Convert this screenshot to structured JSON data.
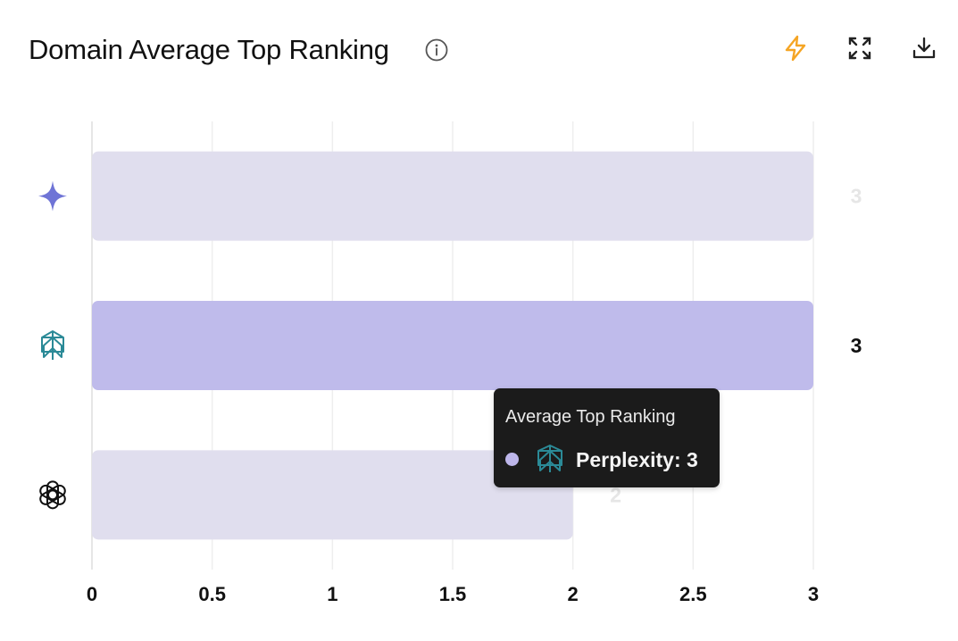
{
  "header": {
    "title": "Domain Average Top Ranking",
    "icons": [
      "info-icon",
      "lightning-icon",
      "expand-icon",
      "download-icon"
    ],
    "accent_color": "#F5A524"
  },
  "chart_data": {
    "type": "bar",
    "orientation": "horizontal",
    "categories": [
      "Gemini",
      "Perplexity",
      "ChatGPT"
    ],
    "category_icons": [
      "gemini-sparkle-icon",
      "perplexity-icon",
      "openai-icon"
    ],
    "values": [
      3,
      3,
      2
    ],
    "value_labels": [
      "3",
      "3",
      "2"
    ],
    "xlim": [
      0,
      3
    ],
    "xticks": [
      "0",
      "0.5",
      "1",
      "1.5",
      "2",
      "2.5",
      "3"
    ],
    "grid": true,
    "highlighted_index": 1,
    "colors": {
      "bar": "#E0DEEE",
      "bar_highlight": "#BFBBEB",
      "label_muted": "#E6E6E6",
      "label_active": "#111111",
      "grid": "#EEEEEE"
    }
  },
  "tooltip": {
    "title": "Average Top Ranking",
    "series_text": "Perplexity: 3",
    "dot_color": "#BDB6EA"
  }
}
